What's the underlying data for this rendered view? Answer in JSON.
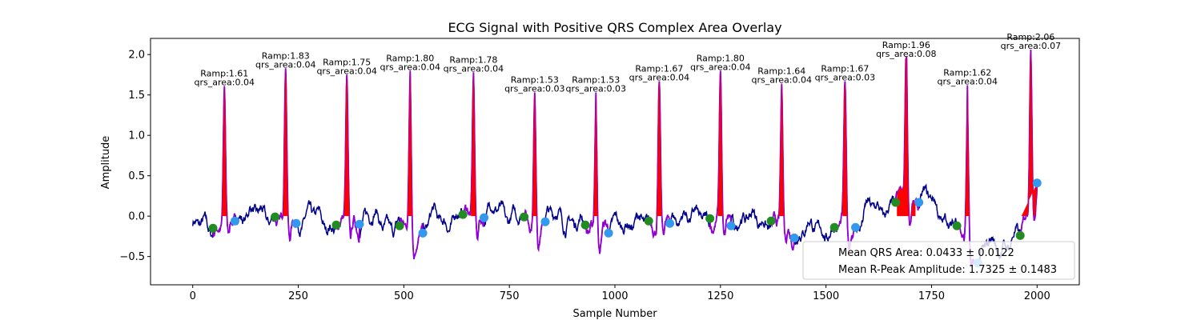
{
  "chart_data": {
    "type": "line",
    "title": "ECG Signal with Positive QRS Complex Area Overlay",
    "xlabel": "Sample Number",
    "ylabel": "Amplitude",
    "xlim": [
      -100,
      2100
    ],
    "ylim": [
      -0.85,
      2.2
    ],
    "x_ticks": [
      0,
      250,
      500,
      750,
      1000,
      1250,
      1500,
      1750,
      2000
    ],
    "y_ticks": [
      -0.5,
      0.0,
      0.5,
      1.0,
      1.5,
      2.0
    ],
    "x_tick_labels": [
      "0",
      "250",
      "500",
      "750",
      "1000",
      "1250",
      "1500",
      "1750",
      "2000"
    ],
    "y_tick_labels": [
      "−0.5",
      "0.0",
      "0.5",
      "1.0",
      "1.5",
      "2.0"
    ],
    "colors": {
      "signal": "#00008b",
      "qrs_segment": "#9400d3",
      "qrs_area": "#ff0000",
      "q_point": "#228b22",
      "s_point": "#3399ee"
    },
    "beats": [
      {
        "r_x": 75,
        "r_amp": 1.61,
        "qrs_area": 0.04,
        "q_x": 48,
        "q_y": -0.15,
        "s_x": 100,
        "s_y": -0.06,
        "label_line1": "Ramp:1.61",
        "label_line2": "qrs_area:0.04"
      },
      {
        "r_x": 220,
        "r_amp": 1.83,
        "qrs_area": 0.04,
        "q_x": 195,
        "q_y": -0.01,
        "s_x": 245,
        "s_y": -0.09,
        "label_line1": "Ramp:1.83",
        "label_line2": "qrs_area:0.04"
      },
      {
        "r_x": 365,
        "r_amp": 1.75,
        "qrs_area": 0.04,
        "q_x": 340,
        "q_y": -0.11,
        "s_x": 395,
        "s_y": -0.1,
        "label_line1": "Ramp:1.75",
        "label_line2": "qrs_area:0.04"
      },
      {
        "r_x": 515,
        "r_amp": 1.8,
        "qrs_area": 0.04,
        "q_x": 490,
        "q_y": -0.12,
        "s_x": 545,
        "s_y": -0.21,
        "label_line1": "Ramp:1.80",
        "label_line2": "qrs_area:0.04"
      },
      {
        "r_x": 665,
        "r_amp": 1.78,
        "qrs_area": 0.04,
        "q_x": 640,
        "q_y": 0.02,
        "s_x": 690,
        "s_y": -0.02,
        "label_line1": "Ramp:1.78",
        "label_line2": "qrs_area:0.04"
      },
      {
        "r_x": 810,
        "r_amp": 1.53,
        "qrs_area": 0.03,
        "q_x": 785,
        "q_y": -0.01,
        "s_x": 835,
        "s_y": -0.07,
        "label_line1": "Ramp:1.53",
        "label_line2": "qrs_area:0.03"
      },
      {
        "r_x": 955,
        "r_amp": 1.53,
        "qrs_area": 0.03,
        "q_x": 930,
        "q_y": -0.11,
        "s_x": 985,
        "s_y": -0.21,
        "label_line1": "Ramp:1.53",
        "label_line2": "qrs_area:0.03"
      },
      {
        "r_x": 1105,
        "r_amp": 1.67,
        "qrs_area": 0.04,
        "q_x": 1080,
        "q_y": -0.06,
        "s_x": 1130,
        "s_y": -0.09,
        "label_line1": "Ramp:1.67",
        "label_line2": "qrs_area:0.04"
      },
      {
        "r_x": 1250,
        "r_amp": 1.8,
        "qrs_area": 0.04,
        "q_x": 1225,
        "q_y": -0.03,
        "s_x": 1275,
        "s_y": -0.12,
        "label_line1": "Ramp:1.80",
        "label_line2": "qrs_area:0.04"
      },
      {
        "r_x": 1395,
        "r_amp": 1.64,
        "qrs_area": 0.04,
        "q_x": 1370,
        "q_y": -0.06,
        "s_x": 1425,
        "s_y": -0.27,
        "label_line1": "Ramp:1.64",
        "label_line2": "qrs_area:0.04"
      },
      {
        "r_x": 1545,
        "r_amp": 1.67,
        "qrs_area": 0.03,
        "q_x": 1520,
        "q_y": -0.14,
        "s_x": 1570,
        "s_y": -0.14,
        "label_line1": "Ramp:1.67",
        "label_line2": "qrs_area:0.03"
      },
      {
        "r_x": 1690,
        "r_amp": 1.96,
        "qrs_area": 0.08,
        "q_x": 1665,
        "q_y": 0.17,
        "s_x": 1720,
        "s_y": 0.17,
        "label_line1": "Ramp:1.96",
        "label_line2": "qrs_area:0.08"
      },
      {
        "r_x": 1835,
        "r_amp": 1.62,
        "qrs_area": 0.04,
        "q_x": 1810,
        "q_y": -0.12,
        "s_x": 1860,
        "s_y": -0.58,
        "label_line1": "Ramp:1.62",
        "label_line2": "qrs_area:0.04"
      },
      {
        "r_x": 1985,
        "r_amp": 2.06,
        "qrs_area": 0.07,
        "q_x": 1960,
        "q_y": -0.24,
        "s_x": 2000,
        "s_y": 0.41,
        "label_line1": "Ramp:2.06",
        "label_line2": "qrs_area:0.07"
      }
    ],
    "legend": {
      "placement": "lower-right",
      "entries": [
        "Mean QRS Area: 0.0433 ± 0.0122",
        "Mean R-Peak Amplitude: 1.7325 ± 0.1483"
      ]
    },
    "grid": false
  }
}
